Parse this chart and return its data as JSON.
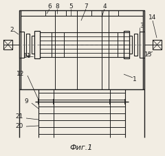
{
  "bg_color": "#f2ede3",
  "line_color": "#1a1a1a",
  "title": "Фиг.1",
  "fig_width": 2.4,
  "fig_height": 2.27,
  "dpi": 100
}
